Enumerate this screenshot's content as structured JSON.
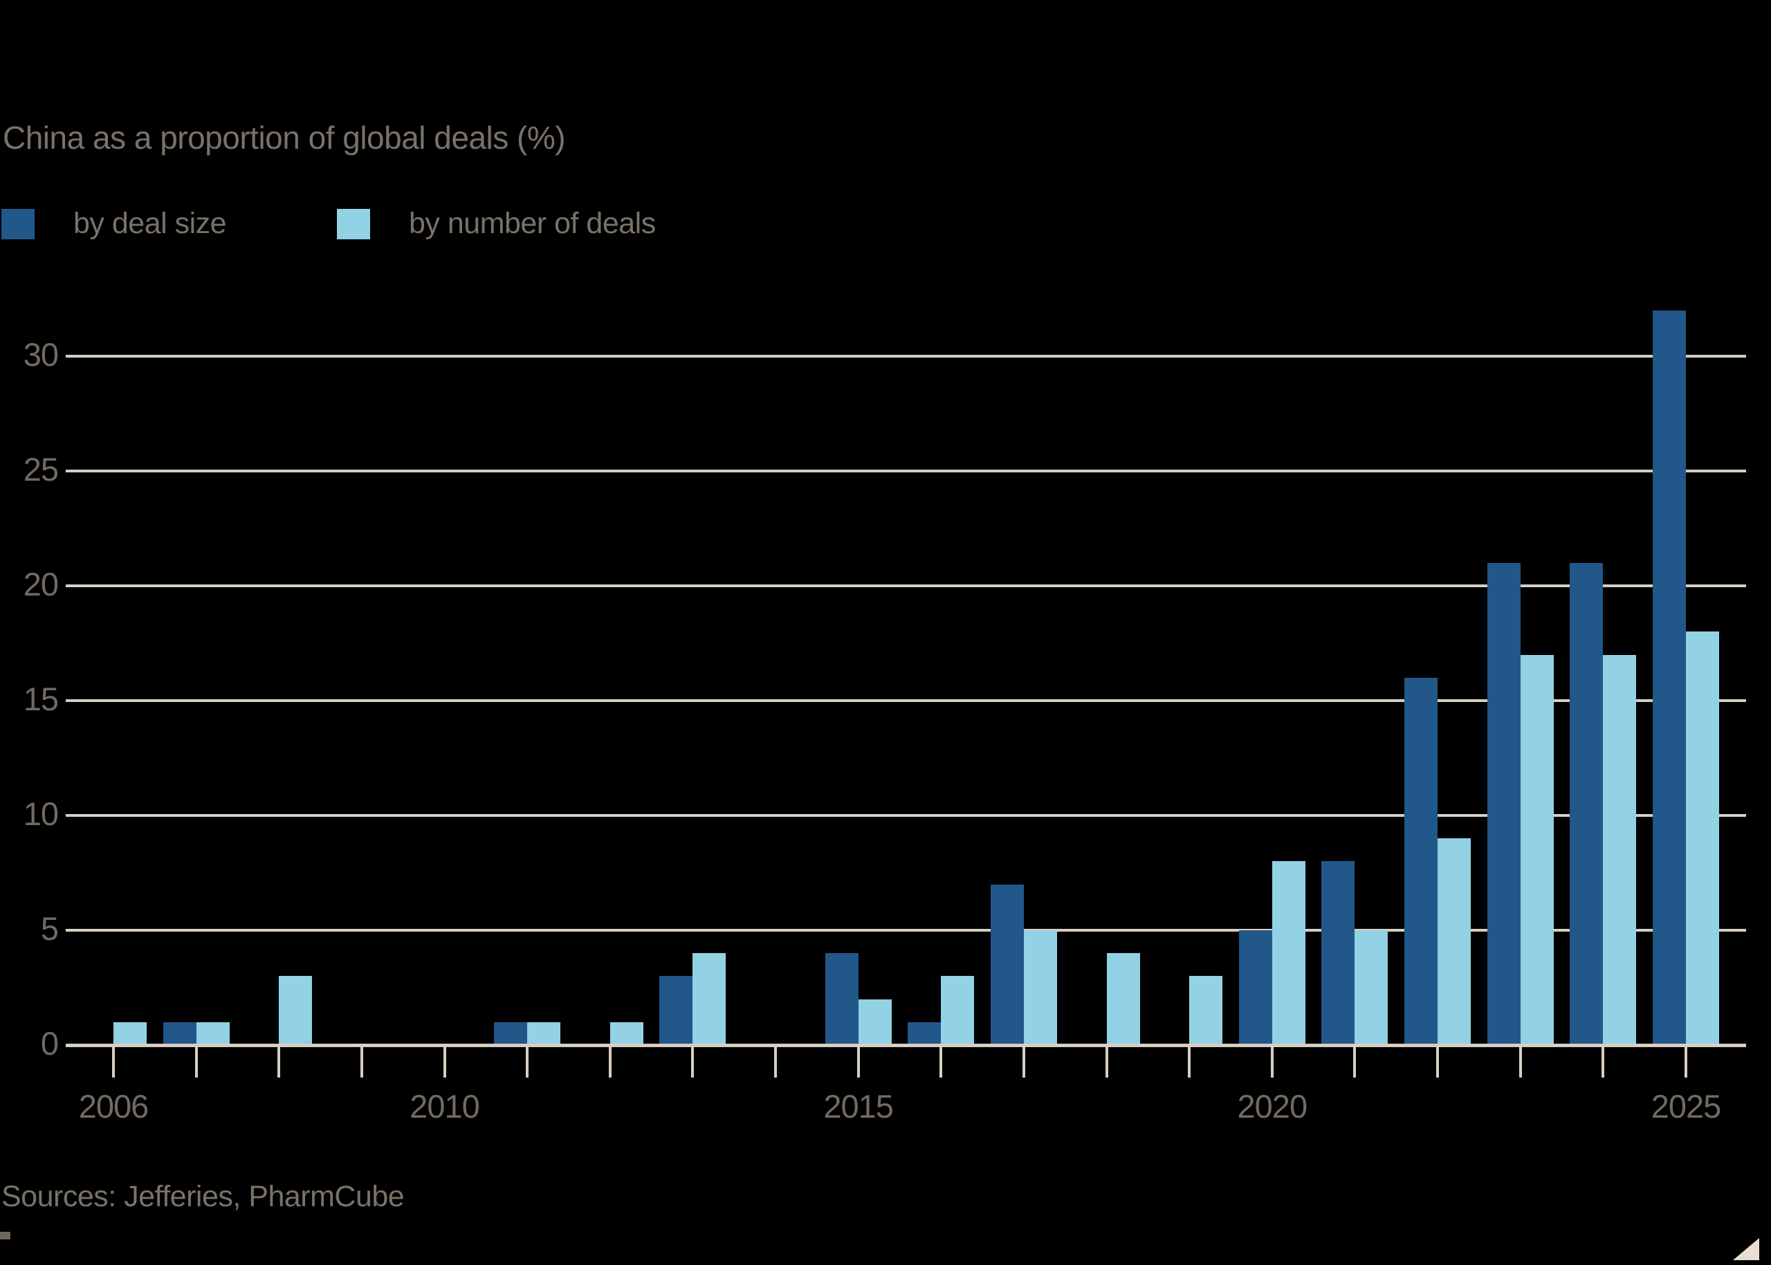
{
  "title": "China as a proportion of global deals (%)",
  "legend": [
    {
      "label": "by deal size",
      "color": "#215789"
    },
    {
      "label": "by number of deals",
      "color": "#92d2e4"
    }
  ],
  "source_note": "Sources: Jefferies, PharmCube",
  "colors": {
    "background": "#000000",
    "gridline": "#d9cec3",
    "axis": "#d9cec3",
    "axis_label": "#726a61",
    "text": "#7a7268",
    "dark_series": "#215789",
    "light_series": "#92d2e4",
    "corner_triangle": "#e8ded3"
  },
  "chart_data": {
    "type": "bar",
    "categories": [
      2006,
      2007,
      2008,
      2009,
      2010,
      2011,
      2012,
      2013,
      2014,
      2015,
      2016,
      2017,
      2018,
      2019,
      2020,
      2021,
      2022,
      2023,
      2024,
      2025
    ],
    "series": [
      {
        "name": "by deal size",
        "color": "#215789",
        "values": [
          0,
          1,
          0,
          0,
          0,
          1,
          0,
          3,
          0,
          4,
          1,
          7,
          0,
          0,
          5,
          8,
          16,
          21,
          21,
          32
        ]
      },
      {
        "name": "by number of deals",
        "color": "#92d2e4",
        "values": [
          1,
          1,
          3,
          0,
          0,
          1,
          1,
          4,
          0,
          2,
          3,
          5,
          4,
          3,
          8,
          5,
          9,
          17,
          17,
          18
        ]
      }
    ],
    "title": "China as a proportion of global deals (%)",
    "xlabel": "",
    "ylabel": "",
    "ylim": [
      0,
      32
    ],
    "yticks": [
      0,
      5,
      10,
      15,
      20,
      25,
      30
    ],
    "xtick_labels": [
      "2006",
      "2010",
      "2015",
      "2020",
      "2025"
    ],
    "grid": "horizontal",
    "legend_position": "top-left"
  }
}
